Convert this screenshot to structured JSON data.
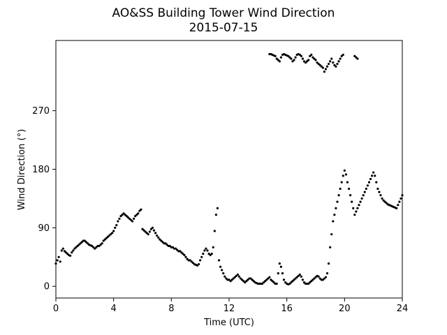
{
  "chart_data": {
    "type": "scatter",
    "title": "AO&SS Building Tower Wind Direction",
    "subtitle": "2015-07-15",
    "xlabel": "Time (UTC)",
    "ylabel": "Wind Direction (°)",
    "xlim": [
      0,
      24
    ],
    "ylim": [
      -18,
      378
    ],
    "xticks": [
      0,
      4,
      8,
      12,
      16,
      20,
      24
    ],
    "xtick_labels": [
      "0",
      "4",
      "8",
      "12",
      "16",
      "20",
      "24"
    ],
    "yticks": [
      0,
      90,
      180,
      270
    ],
    "ytick_labels": [
      "0",
      "90",
      "180",
      "270"
    ],
    "grid": false,
    "legend": "none",
    "marker_color": "#000000",
    "series": [
      {
        "name": "",
        "x": [
          0.0,
          0.1,
          0.2,
          0.3,
          0.4,
          0.5,
          0.6,
          0.7,
          0.8,
          0.9,
          1.0,
          1.1,
          1.2,
          1.3,
          1.4,
          1.5,
          1.6,
          1.7,
          1.8,
          1.9,
          2.0,
          2.1,
          2.2,
          2.3,
          2.4,
          2.5,
          2.6,
          2.7,
          2.8,
          2.9,
          3.0,
          3.1,
          3.2,
          3.3,
          3.4,
          3.5,
          3.6,
          3.7,
          3.8,
          3.9,
          4.0,
          4.1,
          4.2,
          4.3,
          4.4,
          4.5,
          4.6,
          4.7,
          4.8,
          4.9,
          5.0,
          5.1,
          5.2,
          5.3,
          5.4,
          5.5,
          5.6,
          5.7,
          5.8,
          5.9,
          6.0,
          6.1,
          6.2,
          6.3,
          6.4,
          6.5,
          6.6,
          6.7,
          6.8,
          6.9,
          7.0,
          7.1,
          7.2,
          7.3,
          7.4,
          7.5,
          7.6,
          7.7,
          7.8,
          7.9,
          8.0,
          8.1,
          8.2,
          8.3,
          8.4,
          8.5,
          8.6,
          8.7,
          8.8,
          8.9,
          9.0,
          9.1,
          9.2,
          9.3,
          9.4,
          9.5,
          9.6,
          9.7,
          9.8,
          9.9,
          10.0,
          10.1,
          10.2,
          10.3,
          10.4,
          10.5,
          10.6,
          10.7,
          10.8,
          10.9,
          11.0,
          11.1,
          11.2,
          11.3,
          11.4,
          11.5,
          11.6,
          11.7,
          11.8,
          11.9,
          12.0,
          12.1,
          12.2,
          12.3,
          12.4,
          12.5,
          12.6,
          12.7,
          12.8,
          12.9,
          13.0,
          13.1,
          13.2,
          13.3,
          13.4,
          13.5,
          13.6,
          13.7,
          13.8,
          13.9,
          14.0,
          14.1,
          14.2,
          14.3,
          14.4,
          14.5,
          14.6,
          14.7,
          14.8,
          14.9,
          15.0,
          15.1,
          15.2,
          15.3,
          15.4,
          15.5,
          15.6,
          15.7,
          15.8,
          15.9,
          16.0,
          16.1,
          16.2,
          16.3,
          16.4,
          16.5,
          16.6,
          16.7,
          16.8,
          16.9,
          17.0,
          17.1,
          17.2,
          17.3,
          17.4,
          17.5,
          17.6,
          17.7,
          17.8,
          17.9,
          18.0,
          18.1,
          18.2,
          18.3,
          18.4,
          18.5,
          18.6,
          18.7,
          18.8,
          18.9,
          19.0,
          19.1,
          19.2,
          19.3,
          19.4,
          19.5,
          19.6,
          19.7,
          19.8,
          19.9,
          20.0,
          20.1,
          20.2,
          20.3,
          20.4,
          20.5,
          20.6,
          20.7,
          20.8,
          20.9,
          21.0,
          21.1,
          21.2,
          21.3,
          21.4,
          21.5,
          21.6,
          21.7,
          21.8,
          21.9,
          22.0,
          22.1,
          22.2,
          22.3,
          22.4,
          22.5,
          22.6,
          22.7,
          22.8,
          22.9,
          23.0,
          23.1,
          23.2,
          23.3,
          23.4,
          23.5,
          23.6,
          23.7,
          23.8,
          23.9,
          24.0
        ],
        "y": [
          35,
          40,
          45,
          38,
          55,
          58,
          54,
          52,
          50,
          48,
          47,
          52,
          55,
          58,
          60,
          62,
          64,
          66,
          68,
          70,
          70,
          68,
          66,
          64,
          63,
          62,
          60,
          58,
          60,
          62,
          62,
          64,
          66,
          70,
          72,
          74,
          76,
          78,
          80,
          82,
          85,
          90,
          94,
          100,
          104,
          108,
          110,
          112,
          110,
          108,
          106,
          104,
          102,
          100,
          104,
          108,
          110,
          112,
          116,
          118,
          88,
          86,
          84,
          82,
          80,
          84,
          88,
          90,
          86,
          82,
          78,
          75,
          72,
          70,
          68,
          66,
          66,
          64,
          62,
          62,
          60,
          60,
          58,
          58,
          56,
          54,
          54,
          52,
          50,
          48,
          45,
          42,
          40,
          40,
          38,
          36,
          34,
          33,
          32,
          34,
          40,
          45,
          50,
          55,
          58,
          55,
          50,
          48,
          50,
          60,
          85,
          110,
          120,
          40,
          30,
          25,
          20,
          15,
          12,
          10,
          10,
          8,
          10,
          12,
          14,
          16,
          18,
          15,
          12,
          10,
          8,
          6,
          8,
          10,
          12,
          12,
          10,
          8,
          6,
          5,
          4,
          4,
          4,
          4,
          6,
          8,
          10,
          12,
          14,
          10,
          8,
          6,
          4,
          4,
          20,
          35,
          30,
          20,
          10,
          6,
          4,
          3,
          4,
          6,
          8,
          10,
          12,
          14,
          16,
          18,
          15,
          10,
          6,
          4,
          4,
          4,
          6,
          8,
          10,
          12,
          14,
          16,
          15,
          12,
          10,
          10,
          12,
          14,
          20,
          35,
          60,
          80,
          100,
          110,
          120,
          130,
          140,
          150,
          160,
          170,
          178,
          172,
          160,
          150,
          140,
          130,
          120,
          110,
          115,
          120,
          125,
          130,
          135,
          140,
          145,
          150,
          155,
          160,
          165,
          170,
          175,
          170,
          160,
          150,
          145,
          140,
          135,
          132,
          130,
          128,
          126,
          125,
          124,
          123,
          122,
          121,
          120,
          125,
          130,
          135,
          140
        ],
        "x_high": [
          14.8,
          14.9,
          15.0,
          15.1,
          15.2,
          15.3,
          15.4,
          15.5,
          15.6,
          15.7,
          15.8,
          15.9,
          16.0,
          16.1,
          16.2,
          16.3,
          16.4,
          16.5,
          16.6,
          16.7,
          16.8,
          16.9,
          17.0,
          17.1,
          17.2,
          17.3,
          17.4,
          17.5,
          17.6,
          17.7,
          17.8,
          17.9,
          18.0,
          18.1,
          18.2,
          18.3,
          18.4,
          18.5,
          18.6,
          18.7,
          18.8,
          18.9,
          19.0,
          19.1,
          19.2,
          19.3,
          19.4,
          19.5,
          19.6,
          19.7,
          19.8,
          19.9,
          20.7,
          20.8,
          20.9
        ],
        "y_high": [
          357,
          357,
          356,
          355,
          354,
          350,
          348,
          346,
          352,
          356,
          357,
          356,
          355,
          354,
          352,
          350,
          346,
          348,
          352,
          356,
          357,
          356,
          354,
          350,
          346,
          344,
          346,
          348,
          354,
          356,
          352,
          350,
          348,
          344,
          342,
          340,
          338,
          336,
          330,
          334,
          338,
          342,
          346,
          350,
          344,
          340,
          338,
          342,
          346,
          350,
          354,
          356,
          354,
          352,
          350
        ]
      }
    ]
  }
}
